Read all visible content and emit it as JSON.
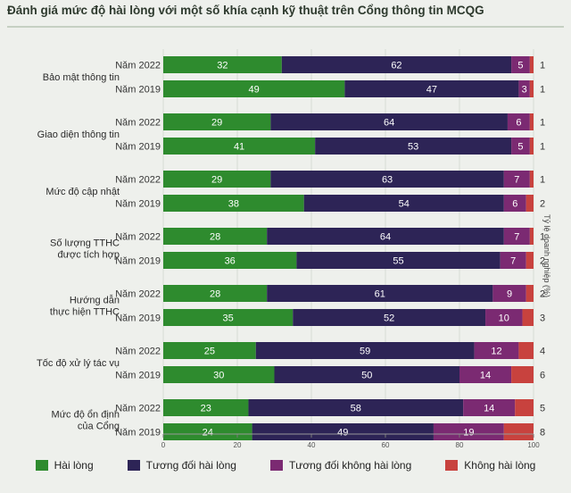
{
  "title": "Đánh giá mức độ hài lòng với một số khía cạnh kỹ thuật trên Cổng thông tin MCQG",
  "side_label": "Tỷ lệ doanh nghiệp (%)",
  "colors": {
    "Hài lòng": "#2e8b2e",
    "Tương đối hài lòng": "#2d2456",
    "Tương đối không hài lòng": "#7b2a72",
    "Không hài lòng": "#c8423e"
  },
  "chart_data": {
    "type": "bar",
    "orientation": "horizontal",
    "stacked": true,
    "title": "Đánh giá mức độ hài lòng với một số khía cạnh kỹ thuật trên Cổng thông tin MCQG",
    "xlabel": "",
    "ylabel": "Tỷ lệ doanh nghiệp (%)",
    "xlim": [
      0,
      100
    ],
    "ticks": [
      0,
      20,
      40,
      60,
      80,
      100
    ],
    "legend_position": "bottom",
    "series_names": [
      "Hài lòng",
      "Tương đối hài lòng",
      "Tương đối không hài lòng",
      "Không hài lòng"
    ],
    "groups": [
      {
        "label": [
          "Bảo mật thông tin"
        ],
        "rows": [
          {
            "year": "Năm 2022",
            "values": [
              32,
              62,
              5,
              1
            ]
          },
          {
            "year": "Năm 2019",
            "values": [
              49,
              47,
              3,
              1
            ]
          }
        ]
      },
      {
        "label": [
          "Giao diện thông tin"
        ],
        "rows": [
          {
            "year": "Năm 2022",
            "values": [
              29,
              64,
              6,
              1
            ]
          },
          {
            "year": "Năm 2019",
            "values": [
              41,
              53,
              5,
              1
            ]
          }
        ]
      },
      {
        "label": [
          "Mức độ cập nhật"
        ],
        "rows": [
          {
            "year": "Năm 2022",
            "values": [
              29,
              63,
              7,
              1
            ]
          },
          {
            "year": "Năm 2019",
            "values": [
              38,
              54,
              6,
              2
            ]
          }
        ]
      },
      {
        "label": [
          "Số lượng TTHC",
          "được tích hợp"
        ],
        "rows": [
          {
            "year": "Năm 2022",
            "values": [
              28,
              64,
              7,
              1
            ]
          },
          {
            "year": "Năm 2019",
            "values": [
              36,
              55,
              7,
              2
            ]
          }
        ]
      },
      {
        "label": [
          "Hướng dẫn",
          "thực hiện TTHC"
        ],
        "rows": [
          {
            "year": "Năm 2022",
            "values": [
              28,
              61,
              9,
              2
            ]
          },
          {
            "year": "Năm 2019",
            "values": [
              35,
              52,
              10,
              3
            ]
          }
        ]
      },
      {
        "label": [
          "Tốc độ xử lý tác vụ"
        ],
        "rows": [
          {
            "year": "Năm 2022",
            "values": [
              25,
              59,
              12,
              4
            ]
          },
          {
            "year": "Năm 2019",
            "values": [
              30,
              50,
              14,
              6
            ]
          }
        ]
      },
      {
        "label": [
          "Mức độ ổn định",
          "của Cổng"
        ],
        "rows": [
          {
            "year": "Năm 2022",
            "values": [
              23,
              58,
              14,
              5
            ]
          },
          {
            "year": "Năm 2019",
            "values": [
              24,
              49,
              19,
              8
            ]
          }
        ]
      }
    ]
  }
}
